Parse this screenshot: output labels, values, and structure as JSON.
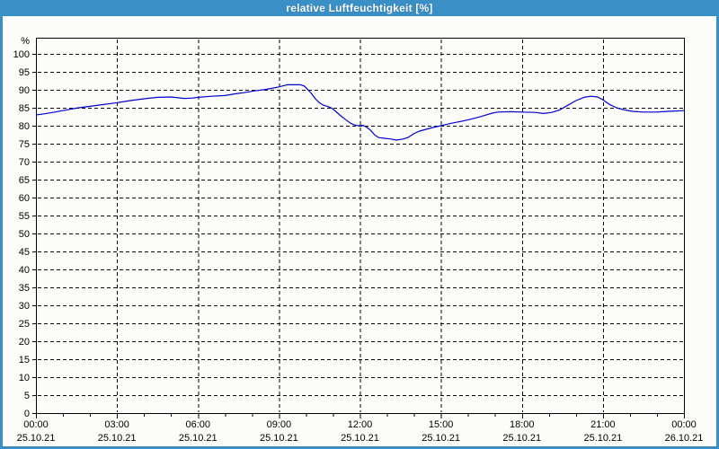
{
  "window": {
    "title": "relative Luftfeuchtigkeit [%]"
  },
  "colors": {
    "title_bar": "#3a8fc6",
    "window_border": "#3a8fc6",
    "title_text": "#ffffff",
    "content_bg": "#fcfdfa",
    "grid": "#000000",
    "axis": "#000000",
    "tick_text": "#000000",
    "series_line": "#0000cc"
  },
  "chart_data": {
    "type": "line",
    "title": "relative Luftfeuchtigkeit [%]",
    "y_unit": "%",
    "ylim": [
      0,
      100
    ],
    "y_tick_step": 5,
    "x_range_hours": [
      0,
      24
    ],
    "x_minor_step_hours": 1,
    "x_major_step_hours": 3,
    "grid_style": "dashed",
    "legend": "none",
    "x_major_ticks": [
      {
        "hour": 0,
        "time": "00:00",
        "date": "25.10.21"
      },
      {
        "hour": 3,
        "time": "03:00",
        "date": "25.10.21"
      },
      {
        "hour": 6,
        "time": "06:00",
        "date": "25.10.21"
      },
      {
        "hour": 9,
        "time": "09:00",
        "date": "25.10.21"
      },
      {
        "hour": 12,
        "time": "12:00",
        "date": "25.10.21"
      },
      {
        "hour": 15,
        "time": "15:00",
        "date": "25.10.21"
      },
      {
        "hour": 18,
        "time": "18:00",
        "date": "25.10.21"
      },
      {
        "hour": 21,
        "time": "21:00",
        "date": "25.10.21"
      },
      {
        "hour": 24,
        "time": "00:00",
        "date": "26.10.21"
      }
    ],
    "series": [
      {
        "name": "relative Luftfeuchtigkeit [%]",
        "color": "#0000cc",
        "points": [
          [
            0,
            83.0
          ],
          [
            0.3,
            83.3
          ],
          [
            0.7,
            83.8
          ],
          [
            1.0,
            84.2
          ],
          [
            1.5,
            84.9
          ],
          [
            2.0,
            85.4
          ],
          [
            2.5,
            85.9
          ],
          [
            3.0,
            86.4
          ],
          [
            3.5,
            87.0
          ],
          [
            4.0,
            87.5
          ],
          [
            4.5,
            87.9
          ],
          [
            5.0,
            88.0
          ],
          [
            5.5,
            87.6
          ],
          [
            5.8,
            87.7
          ],
          [
            6.0,
            87.9
          ],
          [
            6.5,
            88.2
          ],
          [
            7.0,
            88.4
          ],
          [
            7.4,
            88.9
          ],
          [
            7.7,
            89.2
          ],
          [
            8.1,
            89.7
          ],
          [
            8.5,
            90.1
          ],
          [
            8.8,
            90.5
          ],
          [
            9.0,
            90.8
          ],
          [
            9.15,
            91.1
          ],
          [
            9.3,
            91.4
          ],
          [
            9.8,
            91.4
          ],
          [
            9.95,
            91.0
          ],
          [
            10.05,
            90.2
          ],
          [
            10.2,
            89.0
          ],
          [
            10.35,
            87.5
          ],
          [
            10.5,
            86.4
          ],
          [
            10.65,
            85.7
          ],
          [
            10.8,
            85.4
          ],
          [
            10.95,
            84.9
          ],
          [
            11.1,
            84.0
          ],
          [
            11.25,
            83.0
          ],
          [
            11.45,
            81.8
          ],
          [
            11.65,
            80.7
          ],
          [
            11.8,
            80.2
          ],
          [
            11.95,
            80.0
          ],
          [
            12.1,
            80.1
          ],
          [
            12.25,
            79.6
          ],
          [
            12.4,
            78.7
          ],
          [
            12.55,
            77.4
          ],
          [
            12.7,
            76.7
          ],
          [
            12.9,
            76.5
          ],
          [
            13.15,
            76.3
          ],
          [
            13.35,
            76.0
          ],
          [
            13.6,
            76.3
          ],
          [
            13.8,
            76.8
          ],
          [
            14.0,
            77.8
          ],
          [
            14.2,
            78.5
          ],
          [
            14.45,
            79.0
          ],
          [
            14.7,
            79.5
          ],
          [
            15.0,
            80.0
          ],
          [
            15.4,
            80.7
          ],
          [
            15.8,
            81.3
          ],
          [
            16.1,
            81.8
          ],
          [
            16.5,
            82.6
          ],
          [
            16.9,
            83.5
          ],
          [
            17.1,
            83.8
          ],
          [
            17.6,
            83.9
          ],
          [
            18.0,
            83.8
          ],
          [
            18.5,
            83.7
          ],
          [
            18.8,
            83.4
          ],
          [
            19.1,
            83.7
          ],
          [
            19.4,
            84.4
          ],
          [
            19.7,
            85.7
          ],
          [
            20.0,
            87.0
          ],
          [
            20.3,
            87.9
          ],
          [
            20.55,
            88.2
          ],
          [
            20.8,
            88.0
          ],
          [
            21.0,
            87.2
          ],
          [
            21.25,
            85.9
          ],
          [
            21.5,
            85.0
          ],
          [
            21.8,
            84.4
          ],
          [
            22.1,
            84.0
          ],
          [
            22.5,
            83.8
          ],
          [
            23.0,
            83.8
          ],
          [
            23.4,
            84.0
          ],
          [
            23.7,
            84.1
          ],
          [
            24.0,
            84.2
          ]
        ]
      }
    ]
  }
}
